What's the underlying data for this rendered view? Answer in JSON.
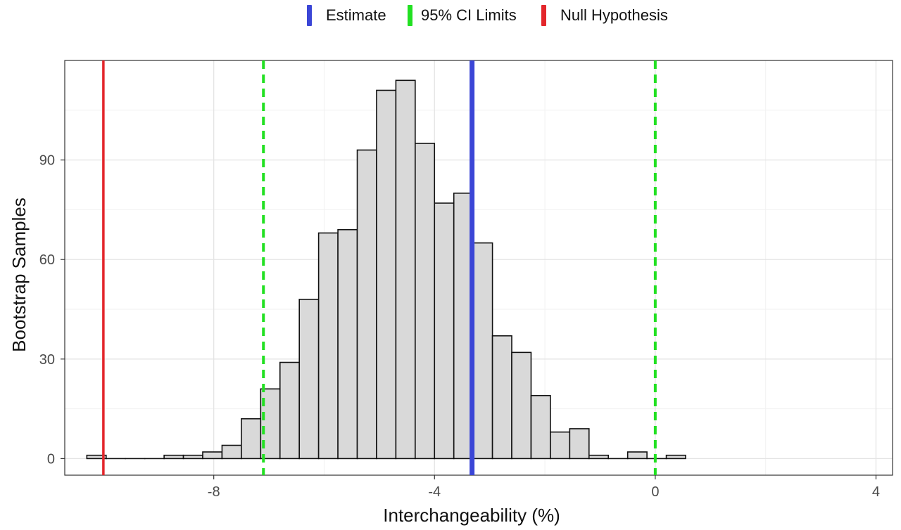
{
  "legend": {
    "items": [
      {
        "label": "Estimate",
        "color": "#3b46d6"
      },
      {
        "label": "95% CI Limits",
        "color": "#22e022"
      },
      {
        "label": "Null Hypothesis",
        "color": "#e3262b"
      }
    ]
  },
  "chart_data": {
    "type": "bar",
    "subtype": "histogram",
    "xlabel": "Interchangeability (%)",
    "ylabel": "Bootstrap Samples",
    "xlim": [
      -10.7,
      4.3
    ],
    "ylim": [
      -5,
      120
    ],
    "xticks": [
      -8,
      -4,
      0,
      4
    ],
    "xtick_labels": [
      "-8",
      "-4",
      "0",
      "4"
    ],
    "yticks": [
      0,
      30,
      60,
      90
    ],
    "ytick_labels": [
      "0",
      "30",
      "60",
      "90"
    ],
    "grid": true,
    "legend_position": "top",
    "bar_fill": "#d9d9d9",
    "bar_edge": "#111111",
    "bins": [
      {
        "x0": -10.3,
        "x1": -9.95,
        "count": 1
      },
      {
        "x0": -9.95,
        "x1": -9.6,
        "count": 0
      },
      {
        "x0": -9.6,
        "x1": -9.25,
        "count": 0
      },
      {
        "x0": -9.25,
        "x1": -8.9,
        "count": 0
      },
      {
        "x0": -8.9,
        "x1": -8.55,
        "count": 1
      },
      {
        "x0": -8.55,
        "x1": -8.2,
        "count": 1
      },
      {
        "x0": -8.2,
        "x1": -7.85,
        "count": 2
      },
      {
        "x0": -7.85,
        "x1": -7.5,
        "count": 4
      },
      {
        "x0": -7.5,
        "x1": -7.15,
        "count": 12
      },
      {
        "x0": -7.15,
        "x1": -6.8,
        "count": 21
      },
      {
        "x0": -6.8,
        "x1": -6.45,
        "count": 29
      },
      {
        "x0": -6.45,
        "x1": -6.1,
        "count": 48
      },
      {
        "x0": -6.1,
        "x1": -5.75,
        "count": 68
      },
      {
        "x0": -5.75,
        "x1": -5.4,
        "count": 69
      },
      {
        "x0": -5.4,
        "x1": -5.05,
        "count": 93
      },
      {
        "x0": -5.05,
        "x1": -4.7,
        "count": 111
      },
      {
        "x0": -4.7,
        "x1": -4.35,
        "count": 114
      },
      {
        "x0": -4.35,
        "x1": -4.0,
        "count": 95
      },
      {
        "x0": -4.0,
        "x1": -3.65,
        "count": 77
      },
      {
        "x0": -3.65,
        "x1": -3.3,
        "count": 80
      },
      {
        "x0": -3.3,
        "x1": -2.95,
        "count": 65
      },
      {
        "x0": -2.95,
        "x1": -2.6,
        "count": 37
      },
      {
        "x0": -2.6,
        "x1": -2.25,
        "count": 32
      },
      {
        "x0": -2.25,
        "x1": -1.9,
        "count": 19
      },
      {
        "x0": -1.9,
        "x1": -1.55,
        "count": 8
      },
      {
        "x0": -1.55,
        "x1": -1.2,
        "count": 9
      },
      {
        "x0": -1.2,
        "x1": -0.85,
        "count": 1
      },
      {
        "x0": -0.85,
        "x1": -0.5,
        "count": 0
      },
      {
        "x0": -0.5,
        "x1": -0.15,
        "count": 2
      },
      {
        "x0": -0.15,
        "x1": 0.2,
        "count": 0
      },
      {
        "x0": 0.2,
        "x1": 0.55,
        "count": 1
      }
    ],
    "vlines": [
      {
        "name": "Null Hypothesis",
        "x": -10.0,
        "color": "#e3262b",
        "style": "solid"
      },
      {
        "name": "95% CI Limits",
        "x": -7.1,
        "color": "#22e022",
        "style": "dashed"
      },
      {
        "name": "Estimate",
        "x": -3.32,
        "color": "#3b46d6",
        "style": "solid"
      },
      {
        "name": "95% CI Limits",
        "x": 0.0,
        "color": "#22e022",
        "style": "dashed"
      }
    ]
  }
}
